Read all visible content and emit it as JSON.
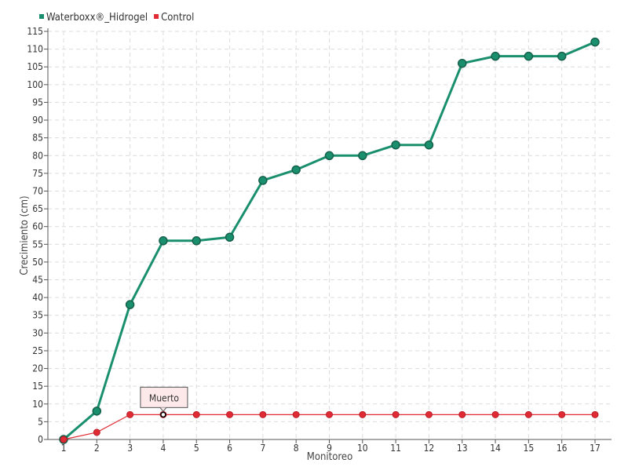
{
  "chart_data": {
    "type": "line",
    "title": "",
    "xlabel": "Monitoreo",
    "ylabel": "Crecimiento (cm)",
    "categories": [
      "1",
      "2",
      "3",
      "4",
      "5",
      "6",
      "7",
      "8",
      "9",
      "10",
      "11",
      "12",
      "13",
      "14",
      "15",
      "16",
      "17"
    ],
    "ylim": [
      0,
      115
    ],
    "ytick_step": 5,
    "grid": true,
    "legend_position": "top-left",
    "series": [
      {
        "name": "Waterboxx®_Hidrogel",
        "color": "#1a8f6e",
        "values": [
          0,
          8,
          38,
          56,
          56,
          57,
          73,
          76,
          80,
          80,
          83,
          83,
          106,
          108,
          108,
          108,
          112
        ]
      },
      {
        "name": "Control",
        "color": "#e02b35",
        "values": [
          0,
          2,
          7,
          7,
          7,
          7,
          7,
          7,
          7,
          7,
          7,
          7,
          7,
          7,
          7,
          7,
          7
        ]
      }
    ],
    "annotations": [
      {
        "text": "Muerto",
        "series": 1,
        "index": 3
      }
    ]
  }
}
